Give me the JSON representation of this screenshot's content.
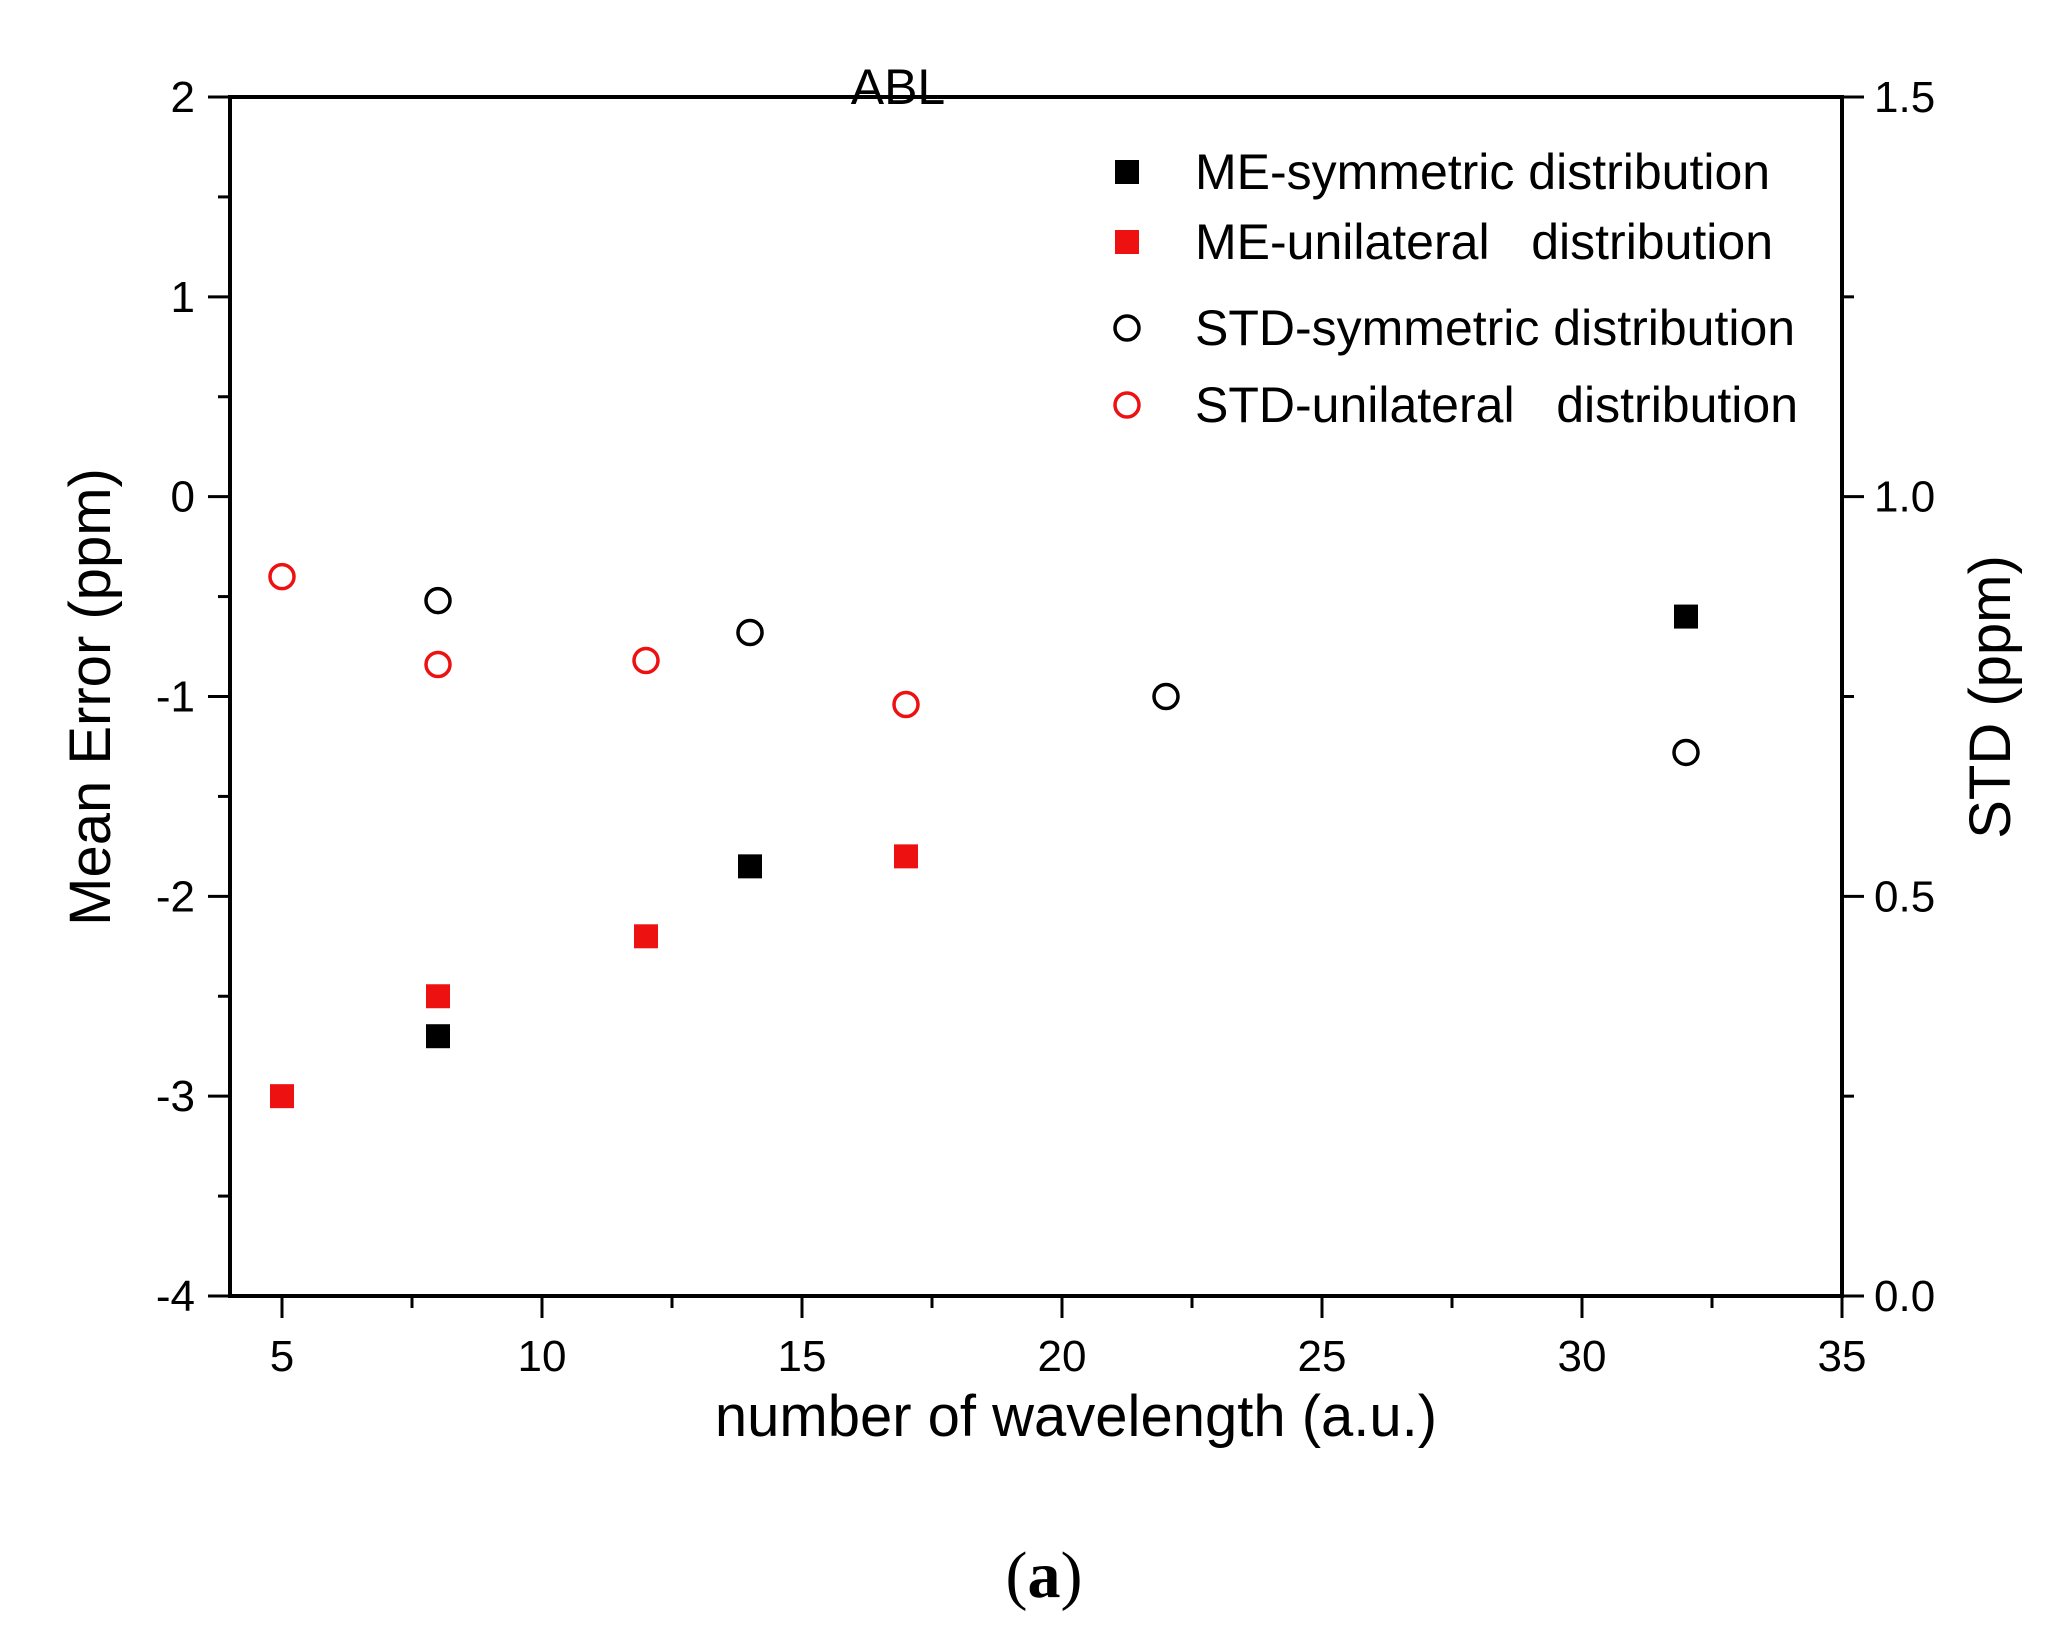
{
  "chart_data": {
    "type": "scatter",
    "title": "ABL",
    "xlabel": "number of wavelength (a.u.)",
    "ylabel_left": "Mean Error (ppm)",
    "ylabel_right": "STD (ppm)",
    "xlim": [
      4,
      35
    ],
    "ylim_left": [
      -4,
      2
    ],
    "ylim_right": [
      0.0,
      1.5
    ],
    "x_ticks": [
      "5",
      "10",
      "15",
      "20",
      "25",
      "30",
      "35"
    ],
    "y_left_ticks": [
      "2",
      "1",
      "0",
      "-1",
      "-2",
      "-3",
      "-4"
    ],
    "y_right_ticks": [
      "1.5",
      "1.0",
      "0.5",
      "0.0"
    ],
    "legend_position": "top-right",
    "grid": false,
    "series": [
      {
        "name": "ME-symmetric distribution",
        "axis": "left",
        "marker": "square-filled",
        "color": "#000000",
        "x": [
          8,
          14,
          32
        ],
        "y": [
          -2.7,
          -1.85,
          -0.6
        ]
      },
      {
        "name": "ME-unilateral   distribution",
        "axis": "left",
        "marker": "square-filled",
        "color": "#ee1111",
        "x": [
          5,
          8,
          12,
          17
        ],
        "y": [
          -3.0,
          -2.5,
          -2.2,
          -1.8
        ]
      },
      {
        "name": "STD-symmetric distribution",
        "axis": "right",
        "marker": "circle-open",
        "color": "#000000",
        "x": [
          8,
          14,
          22,
          32
        ],
        "y": [
          0.87,
          0.83,
          0.75,
          0.68
        ]
      },
      {
        "name": "STD-unilateral   distribution",
        "axis": "right",
        "marker": "circle-open",
        "color": "#ee1111",
        "x": [
          5,
          8,
          12,
          17
        ],
        "y": [
          0.9,
          0.79,
          0.795,
          0.74
        ]
      }
    ]
  },
  "caption": {
    "open": "(",
    "letter": "a",
    "close": ")"
  }
}
